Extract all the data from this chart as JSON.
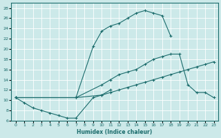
{
  "bg_color": "#cce9e9",
  "line_color": "#1a6b6b",
  "xlabel": "Humidex (Indice chaleur)",
  "xlim": [
    -0.5,
    23.5
  ],
  "ylim": [
    6,
    29
  ],
  "xticks": [
    0,
    1,
    2,
    3,
    4,
    5,
    6,
    7,
    8,
    9,
    10,
    11,
    12,
    13,
    14,
    15,
    16,
    17,
    18,
    19,
    20,
    21,
    22,
    23
  ],
  "yticks": [
    6,
    8,
    10,
    12,
    14,
    16,
    18,
    20,
    22,
    24,
    26,
    28
  ],
  "curves": [
    {
      "x": [
        0,
        7,
        9,
        10,
        11,
        12,
        13,
        14,
        15,
        16,
        17,
        18
      ],
      "y": [
        10.5,
        10.5,
        20.5,
        23.5,
        24.5,
        25.0,
        26.0,
        27.0,
        27.5,
        27.0,
        26.5,
        22.5
      ]
    },
    {
      "x": [
        0,
        7,
        10,
        11,
        12,
        13,
        14,
        15,
        16,
        17,
        18,
        19,
        20,
        21,
        22,
        23
      ],
      "y": [
        10.5,
        10.5,
        13.0,
        14.0,
        15.0,
        15.5,
        16.0,
        17.0,
        18.0,
        18.5,
        19.0,
        19.0,
        13.0,
        11.5,
        11.5,
        10.5
      ]
    },
    {
      "x": [
        0,
        7,
        10,
        11,
        12,
        13,
        14,
        15,
        16,
        17,
        18,
        19,
        20,
        21,
        22,
        23
      ],
      "y": [
        10.5,
        10.5,
        11.0,
        11.5,
        12.0,
        12.5,
        13.0,
        13.5,
        14.0,
        14.5,
        15.0,
        15.5,
        16.0,
        16.5,
        17.0,
        17.5
      ]
    },
    {
      "x": [
        0,
        1,
        2,
        3,
        4,
        5,
        6,
        7,
        9,
        10,
        11
      ],
      "y": [
        10.5,
        9.5,
        8.5,
        8.0,
        7.5,
        7.0,
        6.5,
        6.5,
        10.5,
        11.0,
        12.0
      ]
    }
  ]
}
